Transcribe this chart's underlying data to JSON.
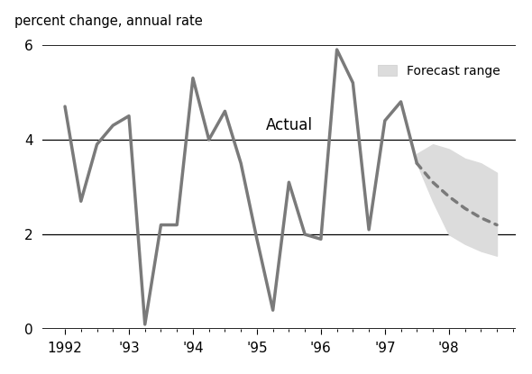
{
  "title": "percent change, annual rate",
  "background_color": "#ffffff",
  "actual_x": [
    1992.0,
    1992.25,
    1992.5,
    1992.75,
    1993.0,
    1993.25,
    1993.5,
    1993.75,
    1994.0,
    1994.25,
    1994.5,
    1994.75,
    1995.0,
    1995.25,
    1995.5,
    1995.75,
    1996.0,
    1996.25,
    1996.5,
    1996.75,
    1997.0,
    1997.25,
    1997.5
  ],
  "actual_y": [
    4.7,
    2.7,
    3.9,
    4.3,
    4.5,
    0.1,
    2.2,
    2.2,
    5.3,
    4.0,
    4.6,
    3.5,
    1.9,
    0.4,
    3.1,
    2.0,
    1.9,
    5.9,
    5.2,
    2.1,
    4.4,
    4.8,
    3.5
  ],
  "forecast_x": [
    1997.5,
    1997.75,
    1998.0,
    1998.25,
    1998.5,
    1998.75
  ],
  "forecast_median": [
    3.5,
    3.1,
    2.8,
    2.55,
    2.35,
    2.2
  ],
  "forecast_upper": [
    3.7,
    3.9,
    3.8,
    3.6,
    3.5,
    3.3
  ],
  "forecast_lower": [
    3.5,
    2.7,
    2.0,
    1.8,
    1.65,
    1.55
  ],
  "line_color": "#7a7a7a",
  "forecast_dot_color": "#7a7a7a",
  "forecast_fill_color": "#dcdcdc",
  "actual_label": "Actual",
  "forecast_label": "Forecast range",
  "ylim": [
    0,
    6
  ],
  "yticks": [
    0,
    2,
    4,
    6
  ],
  "xlim_left": 1991.65,
  "xlim_right": 1999.05,
  "xtick_positions": [
    1992,
    1993,
    1994,
    1995,
    1996,
    1997,
    1998
  ],
  "xtick_labels": [
    "1992",
    "'93",
    "'94",
    "'95",
    "'96",
    "'97",
    "'98"
  ]
}
